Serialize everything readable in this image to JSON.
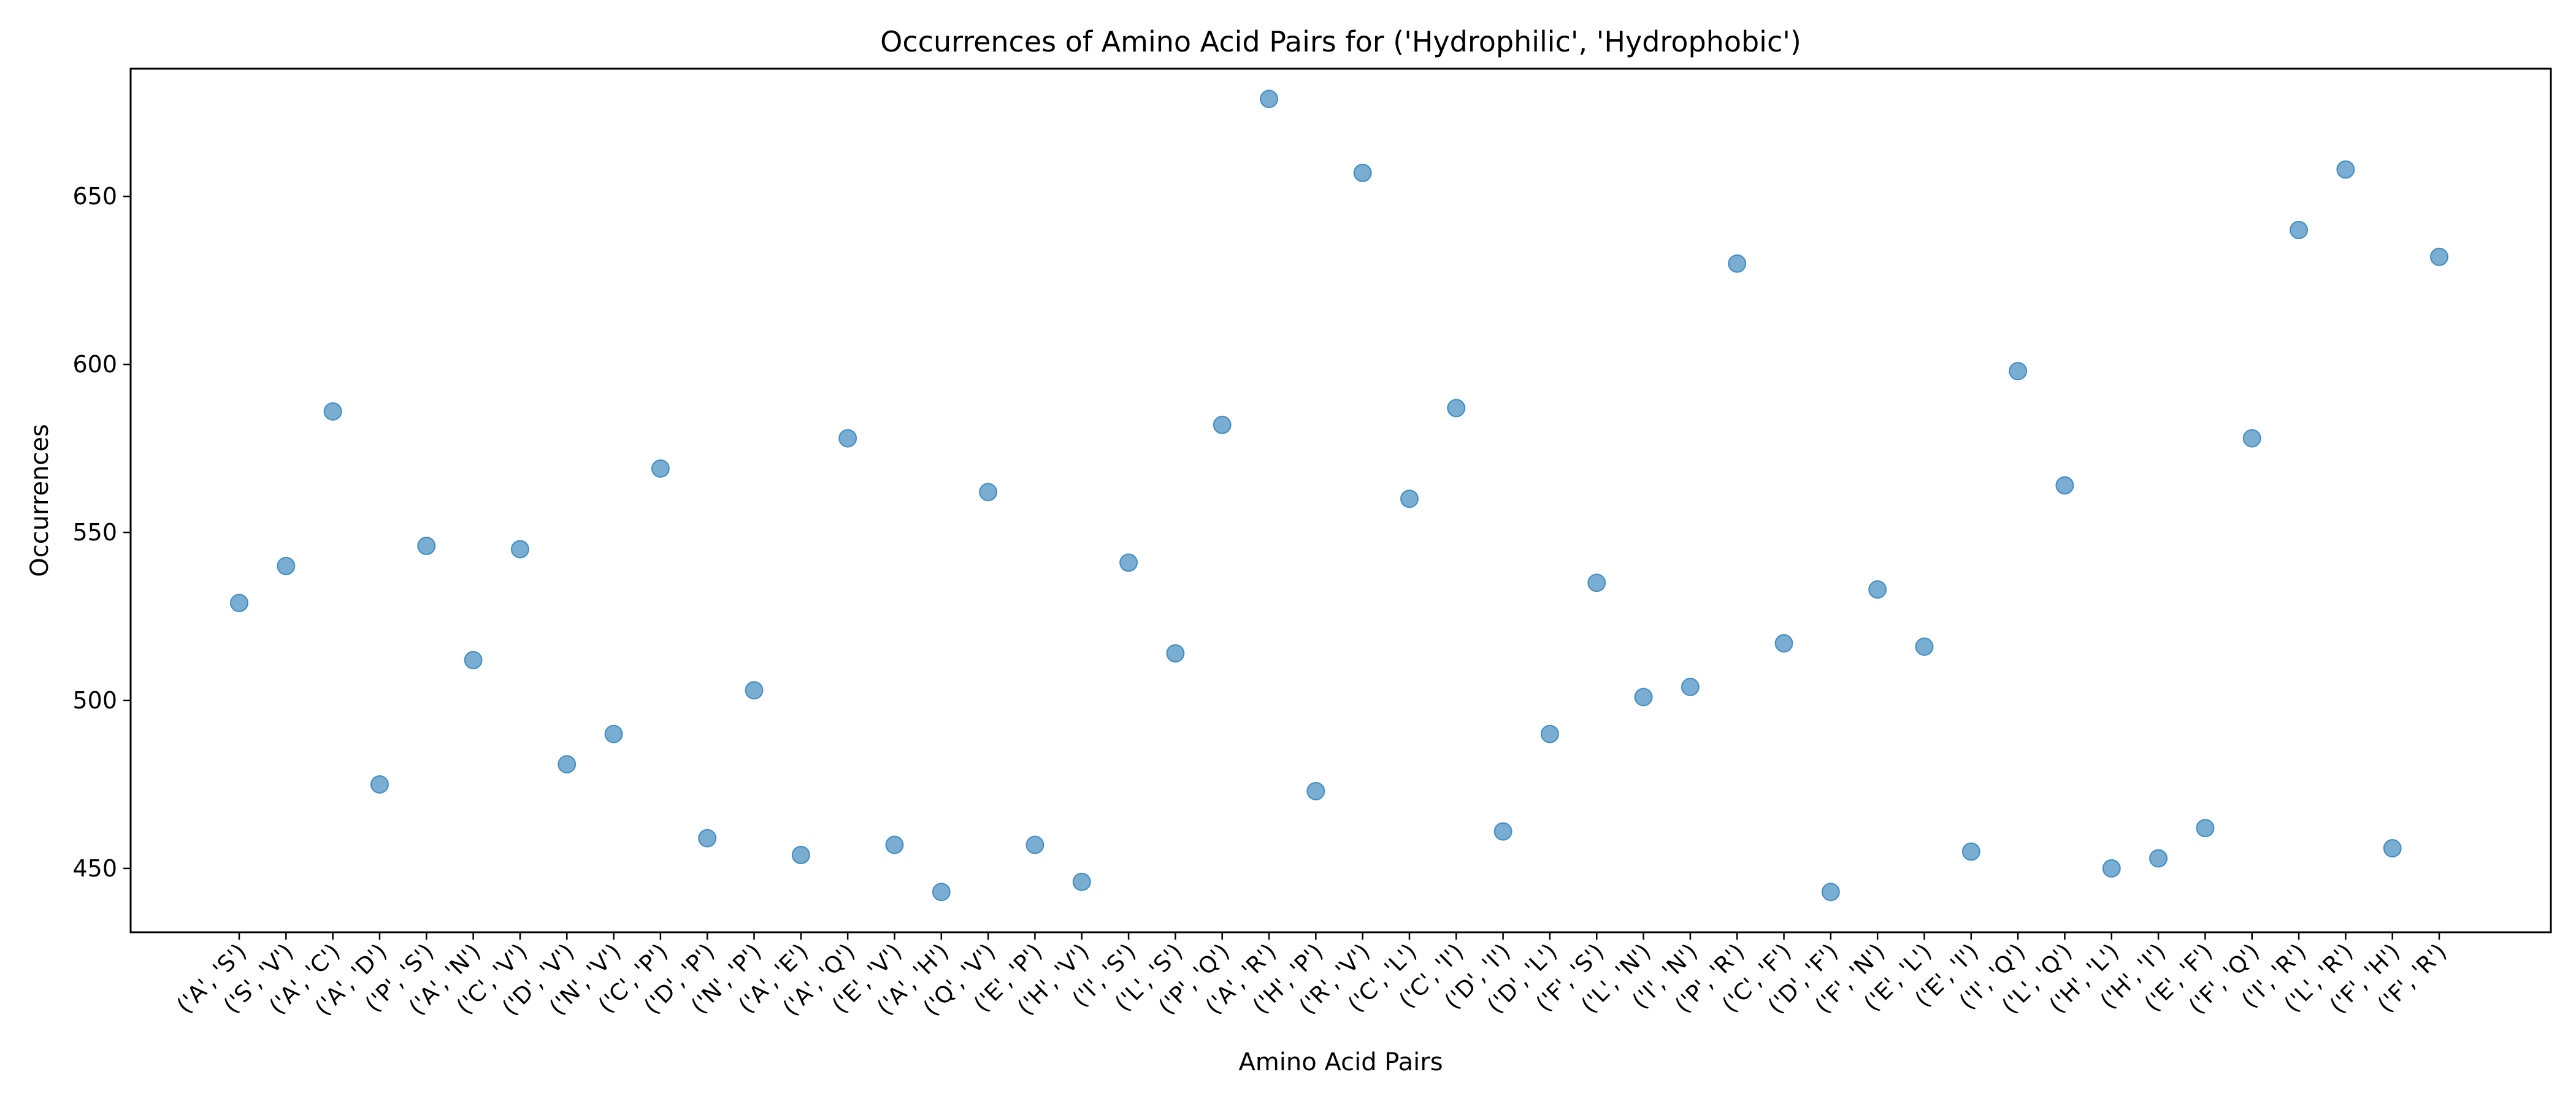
{
  "chart_data": {
    "type": "scatter",
    "title": "Occurrences of Amino Acid Pairs for ('Hydrophilic', 'Hydrophobic')",
    "xlabel": "Amino Acid Pairs",
    "ylabel": "Occurrences",
    "ylim": [
      431,
      688
    ],
    "yticks": [
      450,
      500,
      550,
      600,
      650
    ],
    "grid": false,
    "legend": "none",
    "marker_color": "#1f77b4",
    "categories": [
      "('A', 'S')",
      "('S', 'V')",
      "('A', 'C')",
      "('A', 'D')",
      "('P', 'S')",
      "('A', 'N')",
      "('C', 'V')",
      "('D', 'V')",
      "('N', 'V')",
      "('C', 'P')",
      "('D', 'P')",
      "('N', 'P')",
      "('A', 'E')",
      "('A', 'Q')",
      "('E', 'V')",
      "('A', 'H')",
      "('Q', 'V')",
      "('E', 'P')",
      "('H', 'V')",
      "('I', 'S')",
      "('L', 'S')",
      "('P', 'Q')",
      "('A', 'R')",
      "('H', 'P')",
      "('R', 'V')",
      "('C', 'L')",
      "('C', 'I')",
      "('D', 'I')",
      "('D', 'L')",
      "('F', 'S')",
      "('L', 'N')",
      "('I', 'N')",
      "('P', 'R')",
      "('C', 'F')",
      "('D', 'F')",
      "('F', 'N')",
      "('E', 'L')",
      "('E', 'I')",
      "('I', 'Q')",
      "('L', 'Q')",
      "('H', 'L')",
      "('H', 'I')",
      "('E', 'F')",
      "('F', 'Q')",
      "('I', 'R')",
      "('L', 'R')",
      "('F', 'H')",
      "('F', 'R')"
    ],
    "values": [
      529,
      540,
      586,
      475,
      546,
      512,
      545,
      481,
      490,
      569,
      459,
      503,
      454,
      578,
      457,
      443,
      562,
      457,
      446,
      541,
      514,
      582,
      679,
      473,
      657,
      560,
      587,
      461,
      490,
      535,
      501,
      504,
      630,
      517,
      443,
      533,
      516,
      455,
      598,
      564,
      450,
      453,
      462,
      578,
      640,
      658,
      456,
      632
    ]
  }
}
